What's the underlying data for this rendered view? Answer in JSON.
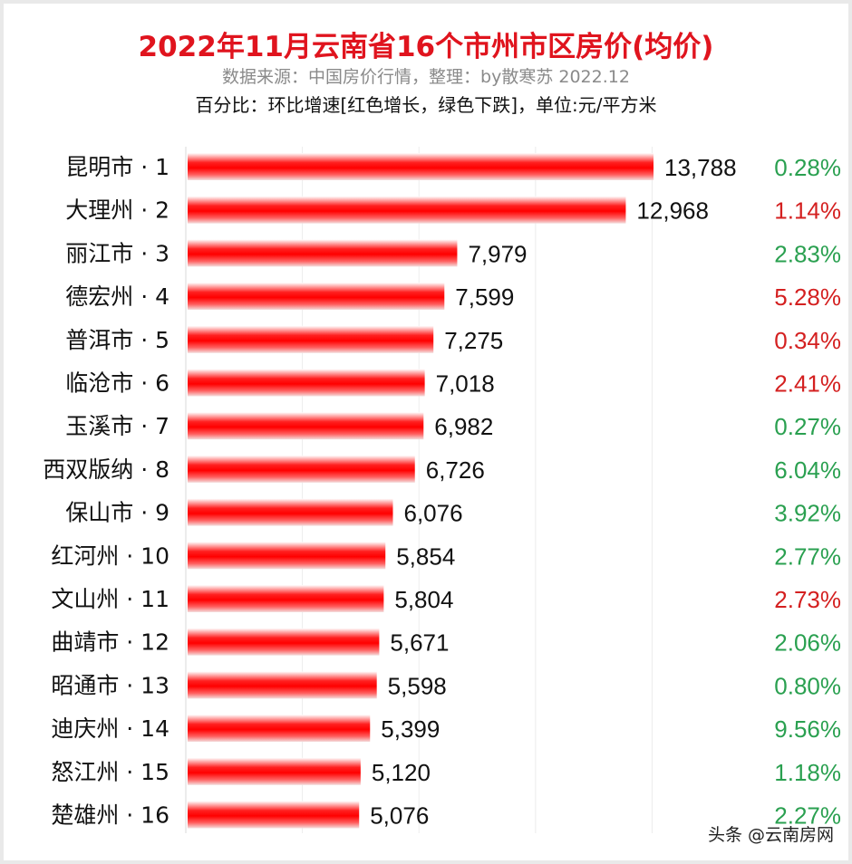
{
  "chart_data": {
    "type": "bar",
    "orientation": "horizontal",
    "title": "2022年11月云南省16个市州市区房价(均价)",
    "subtitle": "数据来源：中国房价行情，整理：by散寒苏 2022.12",
    "note": "百分比：环比增速[红色增长，绿色下跌]，单位:元/平方米",
    "categories": [
      "昆明市 · 1",
      "大理州 · 2",
      "丽江市 · 3",
      "德宏州 · 4",
      "普洱市 · 5",
      "临沧市 · 6",
      "玉溪市 · 7",
      "西双版纳 · 8",
      "保山市 · 9",
      "红河州 · 10",
      "文山州 · 11",
      "曲靖市 · 12",
      "昭通市 · 13",
      "迪庆州 · 14",
      "怒江州 · 15",
      "楚雄州 · 16"
    ],
    "values": [
      13788,
      12968,
      7979,
      7599,
      7275,
      7018,
      6982,
      6726,
      6076,
      5854,
      5804,
      5671,
      5598,
      5399,
      5120,
      5076
    ],
    "value_labels": [
      "13,788",
      "12,968",
      "7,979",
      "7,599",
      "7,275",
      "7,018",
      "6,982",
      "6,726",
      "6,076",
      "5,854",
      "5,804",
      "5,671",
      "5,598",
      "5,399",
      "5,120",
      "5,076"
    ],
    "changes": [
      "0.28%",
      "1.14%",
      "2.83%",
      "5.28%",
      "0.34%",
      "2.41%",
      "0.27%",
      "6.04%",
      "3.92%",
      "2.77%",
      "2.73%",
      "2.06%",
      "0.80%",
      "9.56%",
      "1.18%",
      "2.27%"
    ],
    "change_direction": [
      "down",
      "up",
      "down",
      "up",
      "up",
      "up",
      "down",
      "down",
      "down",
      "down",
      "up",
      "down",
      "down",
      "down",
      "down",
      "down"
    ],
    "xlim": [
      0,
      14000
    ],
    "grid": true,
    "colors": {
      "bar": "#ff0000",
      "up": "#d42020",
      "down": "#2aa050",
      "title": "#e0141e"
    }
  },
  "watermark": "头条 @云南房网"
}
